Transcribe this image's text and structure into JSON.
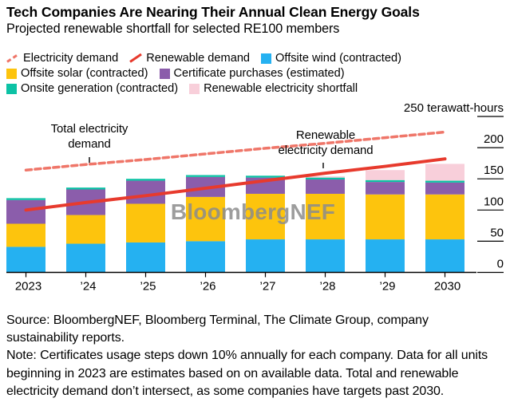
{
  "header": {
    "title": "Tech Companies Are Nearing Their Annual Clean Energy Goals",
    "subtitle": "Projected renewable shortfall for selected RE100 members"
  },
  "legend": {
    "items": [
      {
        "label": "Electricity demand",
        "icon": "dashed-line",
        "color": "#ef7669"
      },
      {
        "label": "Renewable demand",
        "icon": "solid-line",
        "color": "#e73a2d"
      },
      {
        "label": "Offsite wind (contracted)",
        "icon": "square",
        "color": "#25b1f1"
      },
      {
        "label": "Offsite solar (contracted)",
        "icon": "square",
        "color": "#fdc40d"
      },
      {
        "label": "Certificate purchases (estimated)",
        "icon": "square",
        "color": "#8b5dab"
      },
      {
        "label": "Onsite generation (contracted)",
        "icon": "square",
        "color": "#0cc2a5"
      },
      {
        "label": "Renewable electricity shortfall",
        "icon": "square",
        "color": "#f8cfda"
      }
    ],
    "rows": [
      [
        0,
        1,
        2
      ],
      [
        3,
        4
      ],
      [
        5,
        6
      ]
    ]
  },
  "chart_data": {
    "type": "bar",
    "subtype": "stacked-bars-with-line-overlay",
    "title": "Tech Companies Are Nearing Their Annual Clean Energy Goals",
    "subtitle": "Projected renewable shortfall for selected RE100 members",
    "unit_label": "250 terawatt-hours",
    "ylabel": "terawatt-hours",
    "xlabel": "",
    "categories": [
      "2023",
      "’24",
      "’25",
      "’26",
      "’27",
      "’28",
      "’29",
      "2030"
    ],
    "series": [
      {
        "name": "Offsite wind (contracted)",
        "color": "#25b1f1",
        "values": [
          41,
          46,
          48,
          50,
          53,
          53,
          53,
          53
        ]
      },
      {
        "name": "Offsite solar (contracted)",
        "color": "#fdc40d",
        "values": [
          37,
          46,
          62,
          71,
          73,
          73,
          72,
          72
        ]
      },
      {
        "name": "Certificate purchases (estimated)",
        "color": "#8b5dab",
        "values": [
          38,
          41,
          37,
          32,
          26,
          23,
          20,
          19
        ]
      },
      {
        "name": "Onsite generation (contracted)",
        "color": "#0cc2a5",
        "values": [
          3,
          3,
          3,
          3,
          3,
          3,
          3,
          3
        ]
      },
      {
        "name": "Renewable electricity shortfall",
        "color": "#f8cfda",
        "values": [
          0,
          0,
          0,
          0,
          0,
          2,
          16,
          27
        ]
      }
    ],
    "lines": [
      {
        "name": "Electricity demand",
        "style": "dashed",
        "color": "#ef7669",
        "values": [
          164,
          173,
          181,
          190,
          199,
          207,
          216,
          225
        ]
      },
      {
        "name": "Renewable demand",
        "style": "solid",
        "color": "#e73a2d",
        "values": [
          100,
          112,
          123,
          135,
          147,
          159,
          170,
          182
        ]
      }
    ],
    "ylim": [
      0,
      250
    ],
    "yticks": [
      0,
      50,
      100,
      150,
      200,
      250
    ],
    "grid": "right-side tick marks only",
    "legend_position": "top",
    "annotations": [
      {
        "lines": [
          "Total electricity",
          "demand"
        ],
        "target": "Electricity demand line"
      },
      {
        "lines": [
          "Renewable",
          "electricity demand"
        ],
        "target": "Renewable demand line"
      }
    ]
  },
  "watermark": "BloombergNEF",
  "footer": {
    "source": "Source: BloombergNEF, Bloomberg Terminal, The Climate Group, company sustainability reports.",
    "note": "Note: Certificates usage steps down 10% annually for each company. Data for all units beginning in 2023 are estimates based on on available data. Total and renewable electricity demand don’t intersect, as some companies have targets past 2030."
  }
}
